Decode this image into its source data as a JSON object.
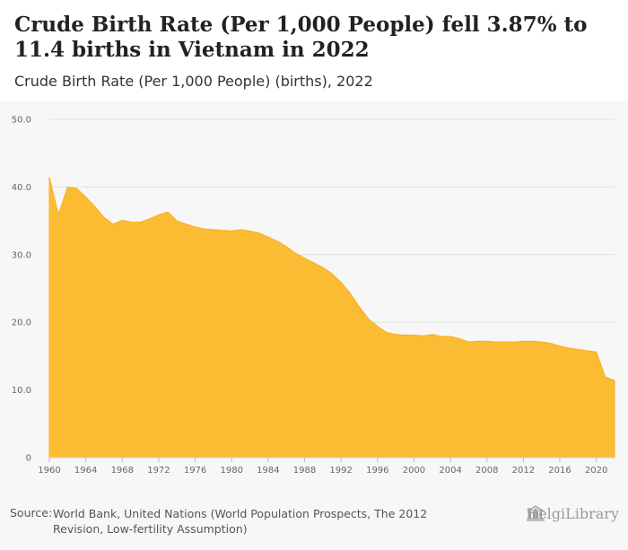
{
  "header": {
    "title": "Crude Birth Rate (Per 1,000 People) fell 3.87% to 11.4 births in Vietnam in 2022",
    "subtitle": "Crude Birth Rate (Per 1,000 People) (births), 2022"
  },
  "footer": {
    "source_label": "Source:",
    "source_text": "World Bank, United Nations (World Population Prospects, The 2012 Revision, Low-fertility Assumption)",
    "logo_text": "HelgiLibrary"
  },
  "colors": {
    "area_fill": "#fbbc33",
    "area_stroke": "#f5b21f",
    "gridline": "#e2e2e2",
    "plot_background": "#f7f7f7"
  },
  "chart_data": {
    "type": "area",
    "title": "Crude Birth Rate (Per 1,000 People) (births), 2022",
    "xlabel": "",
    "ylabel": "",
    "xlim": [
      1960,
      2022
    ],
    "ylim": [
      0,
      50
    ],
    "yticks": [
      0,
      10.0,
      20.0,
      30.0,
      40.0,
      50.0
    ],
    "ytick_labels": [
      "0",
      "10.0",
      "20.0",
      "30.0",
      "40.0",
      "50.0"
    ],
    "xticks": [
      1960,
      1964,
      1968,
      1972,
      1976,
      1980,
      1984,
      1988,
      1992,
      1996,
      2000,
      2004,
      2008,
      2012,
      2016,
      2020
    ],
    "grid": true,
    "series": [
      {
        "name": "Crude Birth Rate (births)",
        "x": [
          1960,
          1961,
          1962,
          1963,
          1964,
          1965,
          1966,
          1967,
          1968,
          1969,
          1970,
          1971,
          1972,
          1973,
          1974,
          1975,
          1976,
          1977,
          1978,
          1979,
          1980,
          1981,
          1982,
          1983,
          1984,
          1985,
          1986,
          1987,
          1988,
          1989,
          1990,
          1991,
          1992,
          1993,
          1994,
          1995,
          1996,
          1997,
          1998,
          1999,
          2000,
          2001,
          2002,
          2003,
          2004,
          2005,
          2006,
          2007,
          2008,
          2009,
          2010,
          2011,
          2012,
          2013,
          2014,
          2015,
          2016,
          2017,
          2018,
          2019,
          2020,
          2021,
          2022
        ],
        "values": [
          41.5,
          35.9,
          40.0,
          39.8,
          38.5,
          37.1,
          35.5,
          34.5,
          35.1,
          34.8,
          34.8,
          35.3,
          35.9,
          36.3,
          35.0,
          34.5,
          34.1,
          33.8,
          33.7,
          33.6,
          33.5,
          33.7,
          33.5,
          33.2,
          32.6,
          32.0,
          31.2,
          30.2,
          29.5,
          28.8,
          28.1,
          27.2,
          25.9,
          24.3,
          22.3,
          20.5,
          19.4,
          18.5,
          18.2,
          18.1,
          18.1,
          18.0,
          18.2,
          17.9,
          17.9,
          17.6,
          17.1,
          17.2,
          17.2,
          17.1,
          17.1,
          17.1,
          17.2,
          17.2,
          17.1,
          16.9,
          16.5,
          16.2,
          16.0,
          15.8,
          15.6,
          11.9,
          11.4
        ]
      }
    ]
  }
}
